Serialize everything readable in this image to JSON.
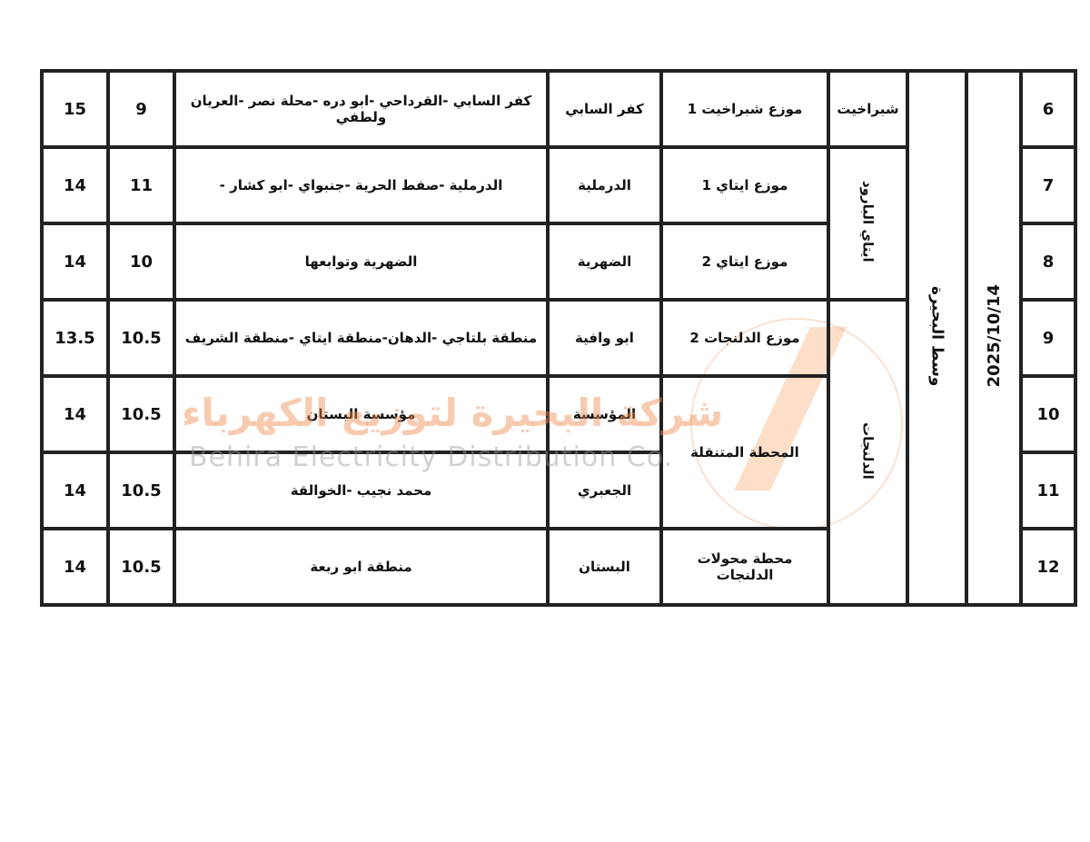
{
  "watermark": {
    "arabic": "شركة البحيرة لتوزيع الكهرباء",
    "english": "Behira Electricity Distribution Co.",
    "color": "#f08c50"
  },
  "table": {
    "date": "2025/10/14",
    "sector": "وسط البحيرة",
    "areas": [
      "شبراخيت",
      "ايتاي البارود",
      "الدلنجات"
    ],
    "rows": [
      {
        "no": "6",
        "station": "موزع شبراخيت 1",
        "feeder": "كفر السابي",
        "regions": "كفر السابي -القرداحي -ابو دره -محلة نصر -العريان ولطفي",
        "from": "9",
        "to": "15"
      },
      {
        "no": "7",
        "station": "موزع ايتاي 1",
        "feeder": "الدرملية",
        "regions": "الدرملية -صفط الحرية -جنبواي -ابو كشار -",
        "from": "11",
        "to": "14"
      },
      {
        "no": "8",
        "station": "موزع ايتاي 2",
        "feeder": "الضهرية",
        "regions": "الضهرية وتوابعها",
        "from": "10",
        "to": "14"
      },
      {
        "no": "9",
        "station": "موزع الدلنجات 2",
        "feeder": "ابو وافية",
        "regions": "منطقة بلتاجي -الدهان-منطقة ايتاي -منطقة الشريف",
        "from": "10.5",
        "to": "13.5"
      },
      {
        "no": "10",
        "station": "المحطة المتنقلة",
        "feeder": "المؤسسة",
        "regions": "مؤسسة البستان",
        "from": "10.5",
        "to": "14"
      },
      {
        "no": "11",
        "station": "",
        "feeder": "الجعبري",
        "regions": "محمد نجيب -الخوالقة",
        "from": "10.5",
        "to": "14"
      },
      {
        "no": "12",
        "station": "محطة محولات الدلنجات",
        "feeder": "البستان",
        "regions": "منطقة ابو ربعة",
        "from": "10.5",
        "to": "14"
      }
    ]
  }
}
